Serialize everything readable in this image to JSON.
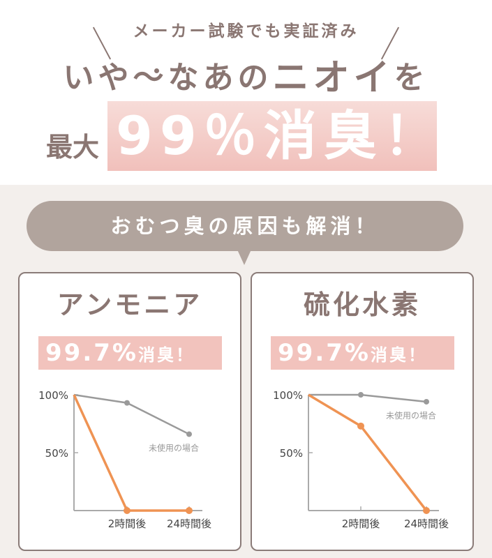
{
  "header": {
    "subtitle": "メーカー試験でも実証済み",
    "headline_a": "いや〜なあの",
    "headline_b": "ニオイ",
    "headline_c": "を",
    "max_label": "最大",
    "big_claim": "99％消臭！"
  },
  "bubble": {
    "text": "おむつ臭の原因も解消！"
  },
  "colors": {
    "accent": "#f2c3bd",
    "product_line": "#ef9353",
    "unused_line": "#9a9a9a",
    "text": "#8a7672",
    "bubble": "#b1a49d"
  },
  "cards": [
    {
      "title": "アンモニア",
      "result_num": "99.7%",
      "result_text": "消臭！"
    },
    {
      "title": "硫化水素",
      "result_num": "99.7%",
      "result_text": "消臭！"
    }
  ],
  "chart_data": [
    {
      "type": "line",
      "categories": [
        "",
        "2時間後",
        "24時間後"
      ],
      "yticks": [
        "100%",
        "50%"
      ],
      "ylim": [
        0,
        100
      ],
      "grid": false,
      "series": [
        {
          "values": [
            100,
            0,
            0
          ],
          "color": "#ef9353"
        },
        {
          "name": "未使用の場合",
          "values": [
            100,
            93,
            66
          ],
          "color": "#9a9a9a"
        }
      ]
    },
    {
      "type": "line",
      "categories": [
        "",
        "2時間後",
        "24時間後"
      ],
      "yticks": [
        "100%",
        "50%"
      ],
      "ylim": [
        0,
        100
      ],
      "grid": false,
      "series": [
        {
          "values": [
            100,
            73,
            0
          ],
          "color": "#ef9353"
        },
        {
          "name": "未使用の場合",
          "values": [
            100,
            100,
            94
          ],
          "color": "#9a9a9a"
        }
      ]
    }
  ]
}
